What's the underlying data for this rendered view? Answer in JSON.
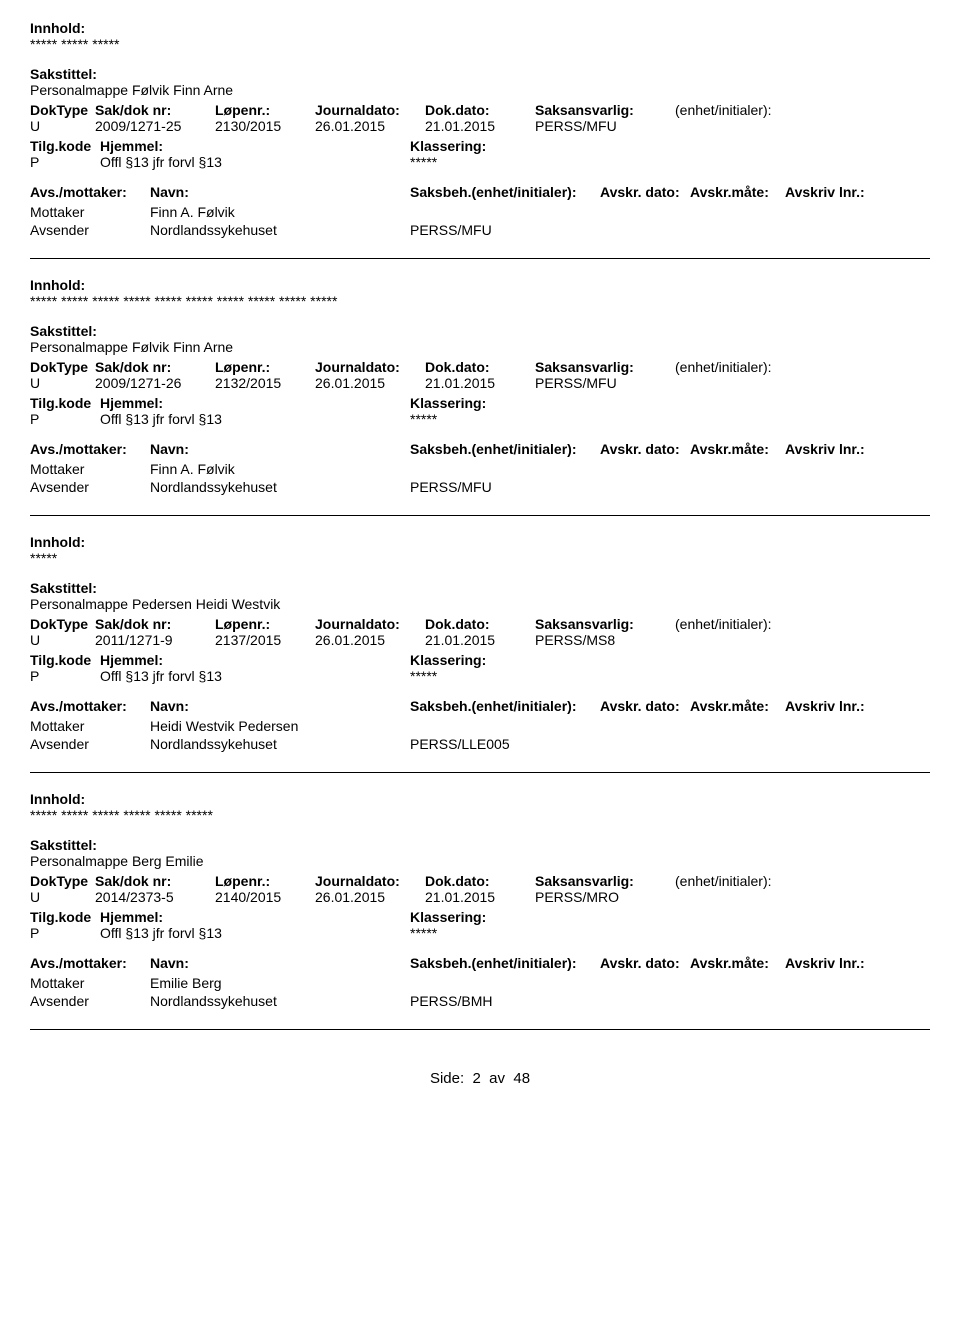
{
  "labels": {
    "innhold": "Innhold:",
    "sakstittel": "Sakstittel:",
    "doktype": "DokType",
    "sakdoknr": "Sak/dok nr:",
    "lopenr": "Løpenr.:",
    "journaldato": "Journaldato:",
    "dokdato": "Dok.dato:",
    "saksansvarlig": "Saksansvarlig:",
    "enhet_initialer": "(enhet/initialer):",
    "tilgkode": "Tilg.kode",
    "hjemmel": "Hjemmel:",
    "klassering": "Klassering:",
    "avs_mottaker": "Avs./mottaker:",
    "navn": "Navn:",
    "saksbeh_enhet": "Saksbeh.(enhet/initialer):",
    "avskr_dato": "Avskr. dato:",
    "avskr_mate": "Avskr.måte:",
    "avskriv_lnr": "Avskriv lnr.:",
    "mottaker": "Mottaker",
    "avsender": "Avsender"
  },
  "records": [
    {
      "innhold_text": "***** ***** *****",
      "sakstittel_text": "Personalmappe Følvik Finn Arne",
      "doktype": "U",
      "sakdoknr": "2009/1271-25",
      "lopenr": "2130/2015",
      "journaldato": "26.01.2015",
      "dokdato": "21.01.2015",
      "saksansvarlig": "PERSS/MFU",
      "tilgkode": "P",
      "hjemmel": "Offl §13 jfr forvl §13",
      "klassering": "*****",
      "mottaker_name": "Finn A. Følvik",
      "avsender_name": "Nordlandssykehuset",
      "avsender_unit": "PERSS/MFU"
    },
    {
      "innhold_text": "***** ***** ***** ***** ***** ***** ***** ***** ***** *****",
      "sakstittel_text": "Personalmappe Følvik Finn Arne",
      "doktype": "U",
      "sakdoknr": "2009/1271-26",
      "lopenr": "2132/2015",
      "journaldato": "26.01.2015",
      "dokdato": "21.01.2015",
      "saksansvarlig": "PERSS/MFU",
      "tilgkode": "P",
      "hjemmel": "Offl §13 jfr forvl §13",
      "klassering": "*****",
      "mottaker_name": "Finn A. Følvik",
      "avsender_name": "Nordlandssykehuset",
      "avsender_unit": "PERSS/MFU"
    },
    {
      "innhold_text": "*****",
      "sakstittel_text": "Personalmappe Pedersen Heidi Westvik",
      "doktype": "U",
      "sakdoknr": "2011/1271-9",
      "lopenr": "2137/2015",
      "journaldato": "26.01.2015",
      "dokdato": "21.01.2015",
      "saksansvarlig": "PERSS/MS8",
      "tilgkode": "P",
      "hjemmel": "Offl §13 jfr forvl §13",
      "klassering": "*****",
      "mottaker_name": "Heidi Westvik Pedersen",
      "avsender_name": "Nordlandssykehuset",
      "avsender_unit": "PERSS/LLE005"
    },
    {
      "innhold_text": "***** ***** ***** ***** ***** *****",
      "sakstittel_text": "Personalmappe Berg Emilie",
      "doktype": "U",
      "sakdoknr": "2014/2373-5",
      "lopenr": "2140/2015",
      "journaldato": "26.01.2015",
      "dokdato": "21.01.2015",
      "saksansvarlig": "PERSS/MRO",
      "tilgkode": "P",
      "hjemmel": "Offl §13 jfr forvl §13",
      "klassering": "*****",
      "mottaker_name": "Emilie Berg",
      "avsender_name": "Nordlandssykehuset",
      "avsender_unit": "PERSS/BMH"
    }
  ],
  "footer": {
    "side_label": "Side:",
    "page": "2",
    "av": "av",
    "total": "48"
  }
}
